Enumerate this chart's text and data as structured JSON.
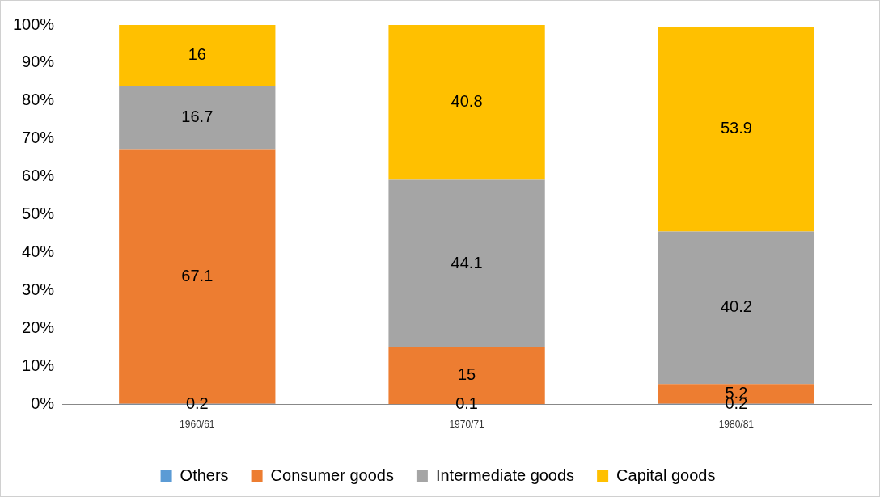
{
  "chart_data": {
    "type": "bar",
    "stacked": true,
    "categories": [
      "1960/61",
      "1970/71",
      "1980/81"
    ],
    "series": [
      {
        "name": "Others",
        "color": "#5b9bd5",
        "values": [
          0.2,
          0.1,
          0.2
        ]
      },
      {
        "name": "Consumer goods",
        "color": "#ed7d31",
        "values": [
          67.1,
          15,
          5.2
        ]
      },
      {
        "name": "Intermediate goods",
        "color": "#a5a5a5",
        "values": [
          16.7,
          44.1,
          40.2
        ]
      },
      {
        "name": "Capital goods",
        "color": "#ffc000",
        "values": [
          16,
          40.8,
          53.9
        ]
      }
    ],
    "ylim": [
      0,
      100
    ],
    "yticks": [
      {
        "value": 0,
        "label": "0%"
      },
      {
        "value": 10,
        "label": "10%"
      },
      {
        "value": 20,
        "label": "20%"
      },
      {
        "value": 30,
        "label": "30%"
      },
      {
        "value": 40,
        "label": "40%"
      },
      {
        "value": 50,
        "label": "50%"
      },
      {
        "value": 60,
        "label": "60%"
      },
      {
        "value": 70,
        "label": "70%"
      },
      {
        "value": 80,
        "label": "80%"
      },
      {
        "value": 90,
        "label": "90%"
      },
      {
        "value": 100,
        "label": "100%"
      }
    ],
    "grid": false,
    "legend": "bottom",
    "data_labels": true
  }
}
